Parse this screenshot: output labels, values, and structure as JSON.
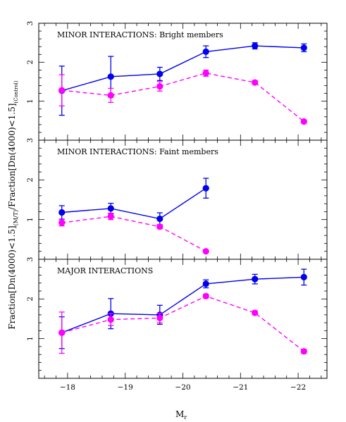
{
  "chart_data": [
    {
      "type": "line",
      "title": "MINOR INTERACTIONS: Bright members",
      "ylim": [
        0,
        3
      ],
      "yticks": [
        "1",
        "2",
        "3"
      ],
      "series": [
        {
          "color": "#0000ee",
          "style": "solid",
          "points": [
            {
              "x": -17.9,
              "y": 1.27,
              "err": 0.63
            },
            {
              "x": -18.75,
              "y": 1.63,
              "err": 0.52
            },
            {
              "x": -19.6,
              "y": 1.7,
              "err": 0.17
            },
            {
              "x": -20.4,
              "y": 2.27,
              "err": 0.15
            },
            {
              "x": -21.25,
              "y": 2.42,
              "err": 0.08
            },
            {
              "x": -22.1,
              "y": 2.37,
              "err": 0.1
            }
          ]
        },
        {
          "color": "#ff00ff",
          "style": "dashed",
          "points": [
            {
              "x": -17.9,
              "y": 1.28,
              "err": 0.4
            },
            {
              "x": -18.75,
              "y": 1.15,
              "err": 0.18
            },
            {
              "x": -19.6,
              "y": 1.38,
              "err": 0.12
            },
            {
              "x": -20.4,
              "y": 1.72,
              "err": 0.08
            },
            {
              "x": -21.25,
              "y": 1.48,
              "err": 0.05
            },
            {
              "x": -22.1,
              "y": 0.48,
              "err": 0.04
            }
          ]
        }
      ]
    },
    {
      "type": "line",
      "title": "MINOR INTERACTIONS: Faint members",
      "ylim": [
        0,
        3
      ],
      "yticks": [
        "1",
        "2",
        "3"
      ],
      "series": [
        {
          "color": "#0000ee",
          "style": "solid",
          "points": [
            {
              "x": -17.9,
              "y": 1.18,
              "err": 0.17
            },
            {
              "x": -18.75,
              "y": 1.28,
              "err": 0.13
            },
            {
              "x": -19.6,
              "y": 1.02,
              "err": 0.15
            },
            {
              "x": -20.4,
              "y": 1.79,
              "err": 0.25
            }
          ]
        },
        {
          "color": "#ff00ff",
          "style": "dashed",
          "points": [
            {
              "x": -17.9,
              "y": 0.92,
              "err": 0.08
            },
            {
              "x": -18.75,
              "y": 1.08,
              "err": 0.08
            },
            {
              "x": -19.6,
              "y": 0.82,
              "err": 0.05
            },
            {
              "x": -20.4,
              "y": 0.2,
              "err": 0.03
            }
          ]
        }
      ]
    },
    {
      "type": "line",
      "title": "MAJOR INTERACTIONS",
      "ylim": [
        0,
        3
      ],
      "yticks": [
        "1",
        "2",
        "3"
      ],
      "series": [
        {
          "color": "#0000ee",
          "style": "solid",
          "points": [
            {
              "x": -17.9,
              "y": 1.15,
              "err": 0.4
            },
            {
              "x": -18.75,
              "y": 1.63,
              "err": 0.38
            },
            {
              "x": -19.6,
              "y": 1.6,
              "err": 0.24
            },
            {
              "x": -20.4,
              "y": 2.38,
              "err": 0.1
            },
            {
              "x": -21.25,
              "y": 2.5,
              "err": 0.12
            },
            {
              "x": -22.1,
              "y": 2.55,
              "err": 0.2
            }
          ]
        },
        {
          "color": "#ff00ff",
          "style": "dashed",
          "points": [
            {
              "x": -17.9,
              "y": 1.15,
              "err": 0.52
            },
            {
              "x": -18.75,
              "y": 1.48,
              "err": 0.15
            },
            {
              "x": -19.6,
              "y": 1.52,
              "err": 0.12
            },
            {
              "x": -20.4,
              "y": 2.07,
              "err": 0.05
            },
            {
              "x": -21.25,
              "y": 1.65,
              "err": 0.05
            },
            {
              "x": -22.1,
              "y": 0.68,
              "err": 0.05
            }
          ]
        }
      ]
    }
  ],
  "shared_axes": {
    "xlabel_main": "M",
    "xlabel_sub": "r",
    "xlim": [
      -17.5,
      -22.5
    ],
    "xticks": [
      {
        "value": -18,
        "label": "−18"
      },
      {
        "value": -19,
        "label": "−19"
      },
      {
        "value": -20,
        "label": "−20"
      },
      {
        "value": -21,
        "label": "−21"
      },
      {
        "value": -22,
        "label": "−22"
      }
    ],
    "ylabel_parts": [
      "Fraction[Dn(4000)<1.5]",
      "(M/T)",
      "/Fraction[Dn(4000)<1.5]",
      "(Control)"
    ]
  }
}
